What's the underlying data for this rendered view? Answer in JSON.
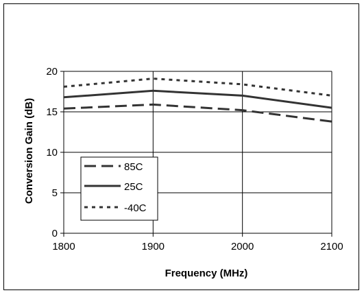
{
  "chart_data": {
    "type": "line",
    "xlabel": "Frequency (MHz)",
    "ylabel": "Conversion Gain (dB)",
    "x": [
      1800,
      1900,
      2000,
      2100
    ],
    "xlim": [
      1800,
      2100
    ],
    "ylim": [
      0,
      20
    ],
    "xticks": [
      "1800",
      "1900",
      "2000",
      "2100"
    ],
    "yticks": [
      "0",
      "5",
      "10",
      "15",
      "20"
    ],
    "grid": true,
    "legend_placement": "bottom-left",
    "series": [
      {
        "name": "85C",
        "values": [
          15.4,
          15.9,
          15.2,
          13.8
        ],
        "style": "dashed",
        "color": "#333333"
      },
      {
        "name": "25C",
        "values": [
          16.8,
          17.6,
          17.0,
          15.5
        ],
        "style": "solid",
        "color": "#333333"
      },
      {
        "name": "-40C",
        "values": [
          18.1,
          19.1,
          18.4,
          17.0
        ],
        "style": "dotted",
        "color": "#333333"
      }
    ]
  }
}
